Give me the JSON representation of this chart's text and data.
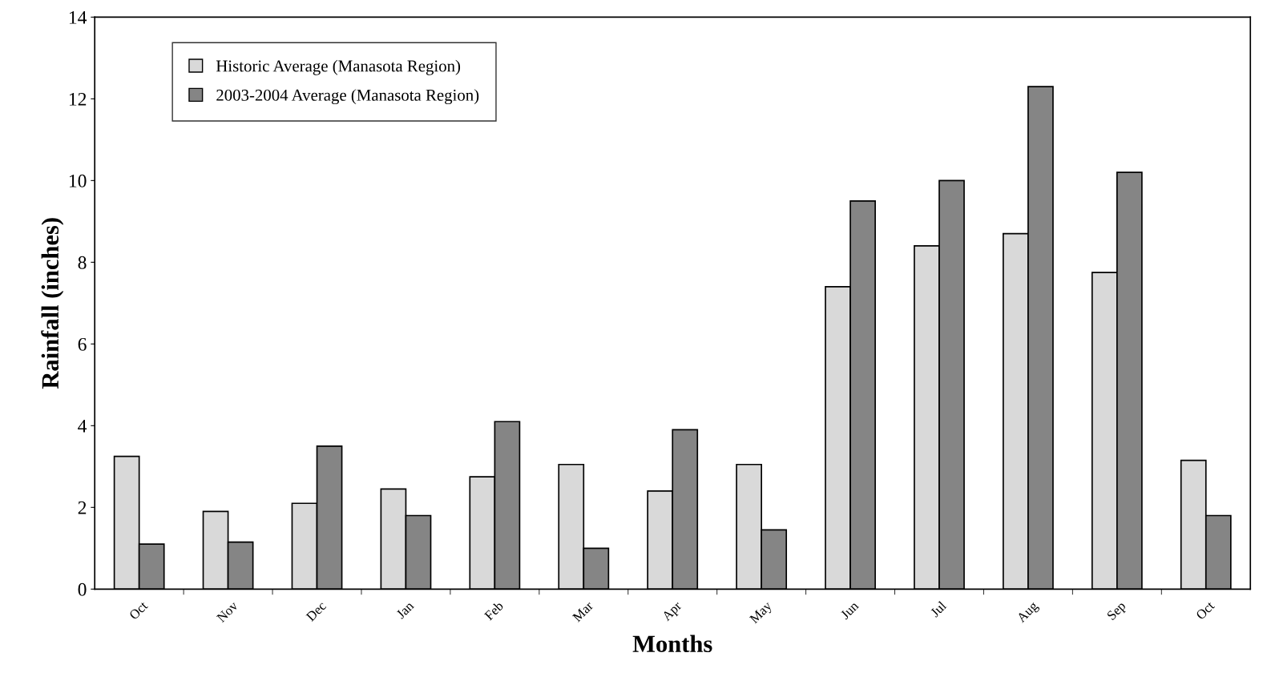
{
  "chart_data": {
    "type": "bar",
    "xlabel": "Months",
    "ylabel": "Rainfall (inches)",
    "categories": [
      "Oct",
      "Nov",
      "Dec",
      "Jan",
      "Feb",
      "Mar",
      "Apr",
      "May",
      "Jun",
      "Jul",
      "Aug",
      "Sep",
      "Oct"
    ],
    "series": [
      {
        "name": "Historic Average (Manasota Region)",
        "color": "#d9d9d9",
        "values": [
          3.25,
          1.9,
          2.1,
          2.45,
          2.75,
          3.05,
          2.4,
          3.05,
          7.4,
          8.4,
          8.7,
          7.75,
          3.15
        ]
      },
      {
        "name": "2003-2004 Average (Manasota Region)",
        "color": "#858585",
        "values": [
          1.1,
          1.15,
          3.5,
          1.8,
          4.1,
          1.0,
          3.9,
          1.45,
          9.5,
          10.0,
          12.3,
          10.2,
          1.8
        ]
      }
    ],
    "ylim": [
      0,
      14
    ],
    "yticks": [
      0,
      2,
      4,
      6,
      8,
      10,
      12,
      14
    ],
    "grid": false,
    "legend": "top left"
  }
}
